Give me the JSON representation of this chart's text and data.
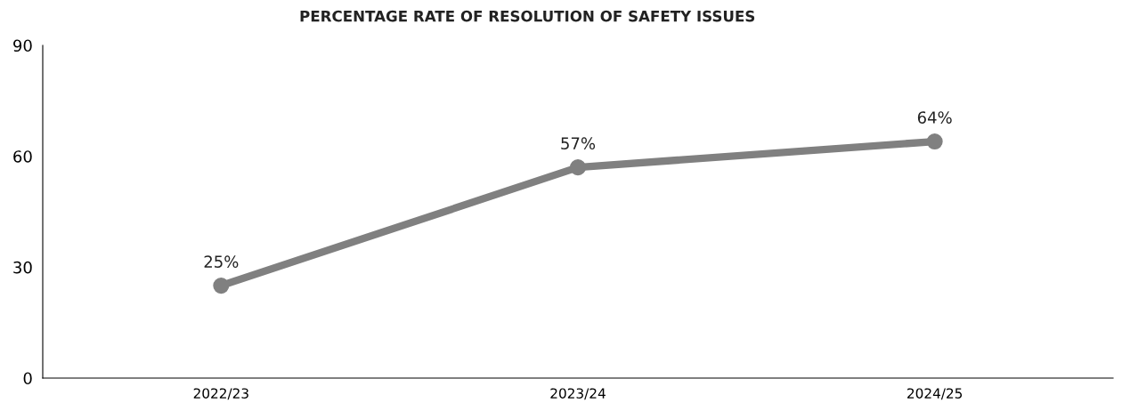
{
  "chart_data": {
    "type": "line",
    "title": "PERCENTAGE RATE OF RESOLUTION OF SAFETY ISSUES",
    "categories": [
      "2022/23",
      "2023/24",
      "2024/25"
    ],
    "series": [
      {
        "color": "#808080",
        "values": [
          25,
          57,
          64
        ]
      }
    ],
    "value_labels": [
      "25%",
      "57%",
      "64%"
    ],
    "ylim": [
      0,
      90
    ],
    "yticks": [
      0,
      30,
      60,
      90
    ],
    "grid": false,
    "legend": false,
    "marker": "circle",
    "line_style": "solid"
  }
}
